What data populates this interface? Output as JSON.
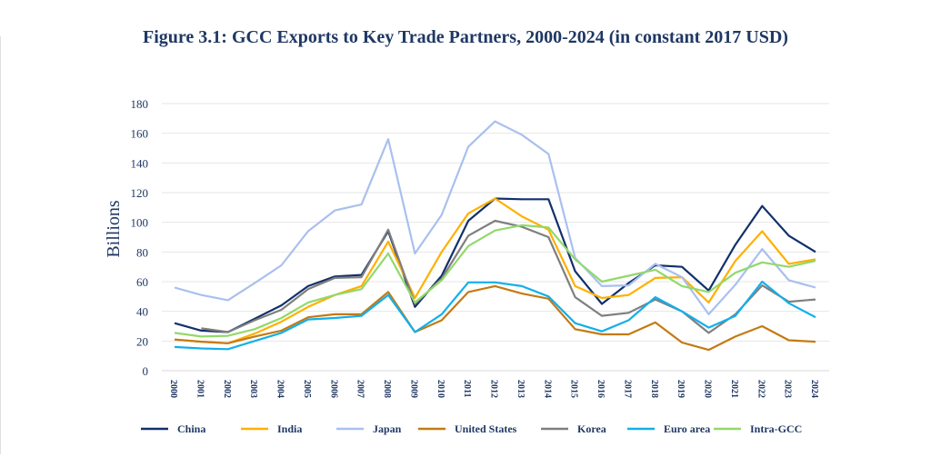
{
  "chart_data": {
    "type": "line",
    "title": "Figure 3.1:  GCC Exports to Key Trade Partners, 2000-2024 (in constant 2017 USD)",
    "xlabel": "",
    "ylabel": "Billions",
    "ylim": [
      0,
      180
    ],
    "yticks": [
      0,
      20,
      40,
      60,
      80,
      100,
      120,
      140,
      160,
      180
    ],
    "grid": true,
    "legend": "bottom",
    "categories": [
      "2000",
      "2001",
      "2002",
      "2003",
      "2004",
      "2005",
      "2006",
      "2007",
      "2008",
      "2009",
      "2010",
      "2011",
      "2012",
      "2013",
      "2014",
      "2015",
      "2016",
      "2017",
      "2018",
      "2019",
      "2020",
      "2021",
      "2022",
      "2023",
      "2024"
    ],
    "series": [
      {
        "name": "China",
        "color": "#12306b",
        "values": [
          32,
          27,
          26,
          35,
          44,
          57,
          63.5,
          64.5,
          94,
          43,
          64,
          101,
          116,
          115.5,
          115.5,
          67,
          45,
          59,
          71,
          70,
          54,
          85,
          111,
          91,
          80
        ]
      },
      {
        "name": "India",
        "color": "#ffb000",
        "values": [
          21,
          19.5,
          18.5,
          25,
          33,
          43,
          51,
          57,
          87,
          49,
          80,
          106,
          116,
          104,
          95,
          57,
          49,
          51,
          62.5,
          63,
          46,
          74,
          94,
          72,
          75
        ]
      },
      {
        "name": "Japan",
        "color": "#a9c0ee",
        "values": [
          56,
          51,
          47.5,
          59,
          71,
          94,
          108,
          112,
          156,
          79,
          105,
          151,
          168,
          159,
          146,
          76,
          57,
          57.5,
          72,
          63,
          38,
          58,
          82,
          61,
          56
        ]
      },
      {
        "name": "United States",
        "color": "#c47a12",
        "values": [
          21,
          19.5,
          18.5,
          23,
          27,
          36,
          38,
          38,
          53,
          26,
          34,
          53,
          57,
          52,
          48.5,
          28,
          24.5,
          24.5,
          32.5,
          19,
          14,
          23,
          30,
          20.5,
          19.5
        ]
      },
      {
        "name": "Korea",
        "color": "#7f7f7f",
        "values": [
          null,
          28.5,
          26,
          34,
          41,
          55,
          62.5,
          63,
          95,
          45,
          62,
          91,
          101,
          97,
          90,
          49.5,
          37,
          39,
          48,
          40,
          25.5,
          38,
          57.5,
          46.5,
          48
        ]
      },
      {
        "name": "Euro area",
        "color": "#12b0ea",
        "values": [
          16,
          15,
          14.5,
          20,
          25.5,
          34.5,
          35.5,
          37,
          51,
          26,
          38,
          59.5,
          59.5,
          57,
          50,
          32,
          26.5,
          34,
          49.5,
          40,
          29,
          37,
          60,
          45.5,
          36
        ]
      },
      {
        "name": "Intra-GCC",
        "color": "#92d96b",
        "values": [
          25.5,
          23,
          23.5,
          28,
          35.5,
          46,
          51,
          55,
          79,
          46,
          61,
          84,
          94.5,
          98,
          96.5,
          75,
          60,
          64,
          68,
          57,
          53,
          66,
          73,
          70,
          74
        ]
      }
    ]
  }
}
